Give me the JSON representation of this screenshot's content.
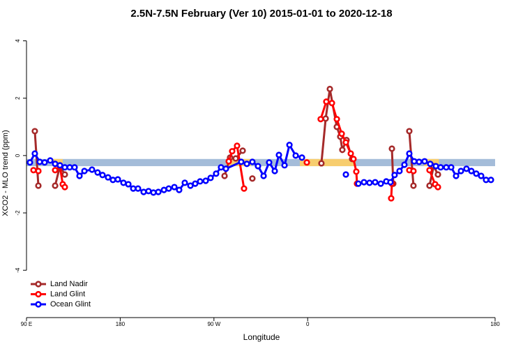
{
  "chart_data": {
    "type": "line",
    "title": "2.5N-7.5N February (Ver 10)   2015-01-01 to 2020-12-18",
    "xlabel": "Longitude",
    "ylabel": "XCO2 - MLO trend (ppm)",
    "xlim": [
      90,
      540
    ],
    "ylim": [
      -5.65,
      4.45
    ],
    "xticks": [
      {
        "value": 90,
        "label": "90 E"
      },
      {
        "value": 180,
        "label": "180"
      },
      {
        "value": 270,
        "label": "90 W"
      },
      {
        "value": 360,
        "label": "0"
      },
      {
        "value": 540,
        "label": "180"
      }
    ],
    "yticks": [
      -4,
      -2,
      0,
      2,
      4
    ],
    "legend": "bottom-left",
    "band": {
      "color": "#a4bcd9",
      "range": [
        -0.37,
        -0.12
      ]
    },
    "highlight": {
      "color": "#f7cd6e",
      "ranges": [
        [
          114.8,
          124.8
        ],
        [
          282,
          305.6
        ],
        [
          352.5,
          406
        ],
        [
          471.7,
          486
        ]
      ]
    },
    "series": [
      {
        "name": "Land Nadir",
        "color": "#a52a2a",
        "x": [
          98.0,
          101.4,
          null,
          117.5,
          122.1,
          126.8,
          null,
          280.2,
          285.5,
          290.9,
          297.6,
          null,
          306.9,
          null,
          373.2,
          377.3,
          381.3,
          388.0,
          391.3,
          393.3,
          397.3,
          402.7,
          null,
          440.9,
          442.2,
          null,
          457.6,
          461.6,
          null,
          477.0,
          481.0,
          485.1
        ],
        "values": [
          0.85,
          -1.05,
          null,
          -1.05,
          -0.37,
          -0.66,
          null,
          -0.71,
          -0.07,
          -0.1,
          0.17,
          null,
          -0.8,
          null,
          -0.27,
          1.29,
          2.32,
          1.0,
          0.66,
          0.2,
          0.54,
          -0.12,
          null,
          0.24,
          -0.98,
          null,
          0.85,
          -1.05,
          null,
          -1.05,
          -0.37,
          -0.66
        ]
      },
      {
        "name": "Land Glint",
        "color": "#ff0000",
        "x": [
          96.7,
          101.4,
          null,
          117.5,
          122.1,
          124.8,
          126.8,
          null,
          284.2,
          287.5,
          292.2,
          298.9,
          null,
          359.2,
          null,
          372.5,
          377.9,
          383.3,
          388.0,
          392.7,
          396.7,
          401.4,
          404.0,
          406.7,
          407.4,
          null,
          440.2,
          440.9,
          null,
          457.6,
          461.6,
          null,
          477.0,
          482.4,
          485.1
        ],
        "values": [
          -0.51,
          -0.54,
          null,
          -0.51,
          -0.37,
          -1.0,
          -1.1,
          null,
          -0.2,
          0.15,
          0.34,
          -1.15,
          null,
          -0.24,
          null,
          1.27,
          1.88,
          1.83,
          1.27,
          0.76,
          0.46,
          0.07,
          -0.12,
          -0.56,
          -0.98,
          null,
          -1.49,
          -0.98,
          null,
          -0.51,
          -0.54,
          null,
          -0.51,
          -1.0,
          -1.1
        ]
      },
      {
        "name": "Ocean Glint",
        "color": "#0000ff",
        "x": [
          93.3,
          98.0,
          102.7,
          107.4,
          112.8,
          117.5,
          122.1,
          126.8,
          131.5,
          136.2,
          140.9,
          145.6,
          152.9,
          158.3,
          163.0,
          168.3,
          173.0,
          177.7,
          183.1,
          187.8,
          192.5,
          197.1,
          202.5,
          207.2,
          211.9,
          216.6,
          222.0,
          226.6,
          232.0,
          236.6,
          242.0,
          247.4,
          252.0,
          256.7,
          262.1,
          266.8,
          272.1,
          276.8,
          281.5,
          296.2,
          301.6,
          306.9,
          312.3,
          317.7,
          323.0,
          328.4,
          332.4,
          337.8,
          342.5,
          348.5,
          354.5,
          null,
          396.7,
          null,
          408.7,
          414.1,
          419.4,
          424.8,
          430.2,
          435.5,
          439.5,
          443.5,
          448.2,
          452.9,
          457.6,
          462.3,
          467.0,
          472.3,
          477.7,
          483.1,
          487.7,
          493.1,
          497.8,
          502.5,
          507.2,
          512.5,
          517.2,
          521.9,
          526.6,
          531.3,
          536.0
        ],
        "values": [
          -0.24,
          0.07,
          -0.22,
          -0.24,
          -0.17,
          -0.29,
          -0.34,
          -0.41,
          -0.41,
          -0.41,
          -0.71,
          -0.54,
          -0.49,
          -0.59,
          -0.68,
          -0.76,
          -0.85,
          -0.83,
          -0.95,
          -1.0,
          -1.15,
          -1.15,
          -1.27,
          -1.24,
          -1.29,
          -1.27,
          -1.2,
          -1.15,
          -1.1,
          -1.2,
          -0.95,
          -1.05,
          -0.98,
          -0.9,
          -0.88,
          -0.78,
          -0.63,
          -0.41,
          -0.46,
          -0.22,
          -0.29,
          -0.22,
          -0.37,
          -0.71,
          -0.24,
          -0.54,
          0.02,
          -0.34,
          0.37,
          0,
          -0.07,
          null,
          -0.66,
          null,
          -0.98,
          -0.93,
          -0.95,
          -0.93,
          -0.98,
          -0.9,
          -0.93,
          -0.68,
          -0.54,
          -0.32,
          0.07,
          -0.2,
          -0.22,
          -0.2,
          -0.29,
          -0.37,
          -0.41,
          -0.41,
          -0.41,
          -0.71,
          -0.54,
          -0.46,
          -0.54,
          -0.63,
          -0.71,
          -0.85,
          -0.85
        ]
      }
    ]
  }
}
